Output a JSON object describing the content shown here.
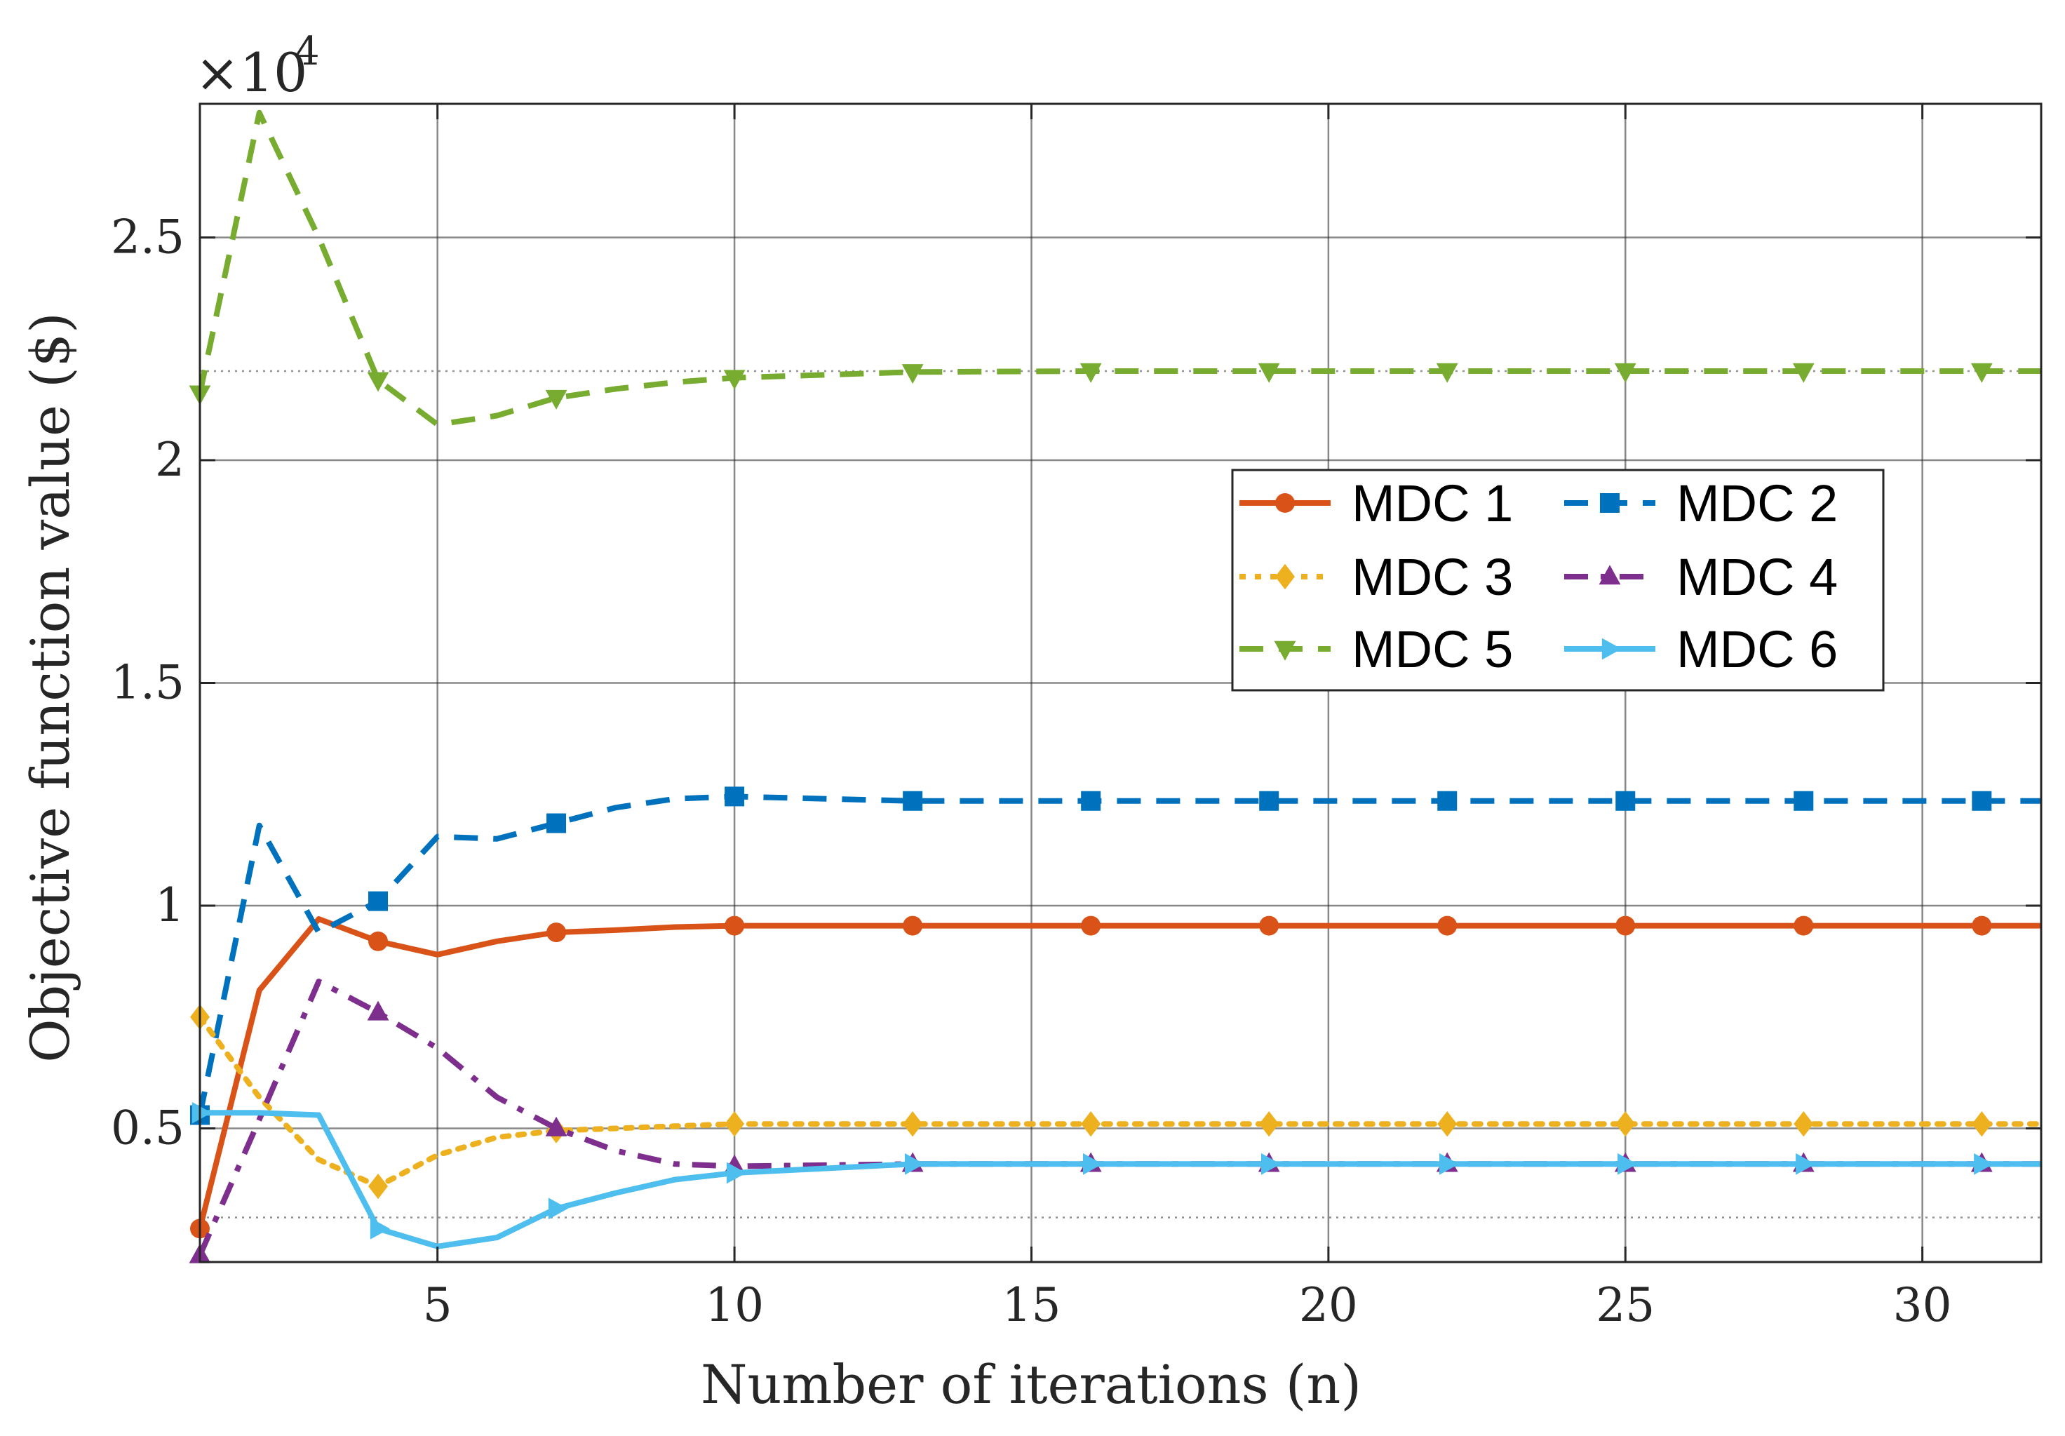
{
  "chart_data": {
    "type": "line",
    "title": "",
    "xlabel": "Number of iterations (n)",
    "ylabel": "Objective function value ($)",
    "exponent_label": "×10",
    "exponent_power": "4",
    "xlim": [
      1,
      32
    ],
    "ylim": [
      2000,
      28000
    ],
    "y_scale": 10000,
    "grid": true,
    "legend_position": "center-right",
    "x_ticks": [
      5,
      10,
      15,
      20,
      25,
      30
    ],
    "x_tick_labels": [
      "5",
      "10",
      "15",
      "20",
      "25",
      "30"
    ],
    "y_ticks": [
      5000,
      10000,
      15000,
      20000,
      25000
    ],
    "y_tick_labels": [
      "0.5",
      "1",
      "1.5",
      "2",
      "2.5"
    ],
    "y_minor_dotted": [
      3000,
      22000,
      28000
    ],
    "series": [
      {
        "name": "MDC 1",
        "color": "#D95319",
        "dash": "solid",
        "marker": "circle",
        "x": [
          1,
          2,
          3,
          4,
          5,
          6,
          7,
          8,
          9,
          10,
          13,
          16,
          19,
          22,
          25,
          28,
          31,
          32
        ],
        "values": [
          2750,
          8100,
          9700,
          9200,
          8900,
          9200,
          9400,
          9450,
          9520,
          9550,
          9550,
          9550,
          9550,
          9550,
          9550,
          9550,
          9550,
          9550
        ],
        "marker_x": [
          1,
          4,
          7,
          10,
          13,
          16,
          19,
          22,
          25,
          28,
          31
        ]
      },
      {
        "name": "MDC 2",
        "color": "#0072BD",
        "dash": "dashed",
        "marker": "square",
        "x": [
          1,
          2,
          3,
          4,
          5,
          6,
          7,
          8,
          9,
          10,
          13,
          16,
          19,
          22,
          25,
          28,
          31,
          32
        ],
        "values": [
          5300,
          11800,
          9400,
          10100,
          11550,
          11500,
          11850,
          12200,
          12400,
          12450,
          12350,
          12350,
          12350,
          12350,
          12350,
          12350,
          12350,
          12350
        ],
        "marker_x": [
          1,
          4,
          7,
          10,
          13,
          16,
          19,
          22,
          25,
          28,
          31
        ]
      },
      {
        "name": "MDC 3",
        "color": "#EDB120",
        "dash": "dotted",
        "marker": "diamond",
        "x": [
          1,
          2,
          3,
          4,
          5,
          6,
          7,
          8,
          9,
          10,
          13,
          16,
          19,
          22,
          25,
          28,
          31,
          32
        ],
        "values": [
          7500,
          5700,
          4300,
          3700,
          4400,
          4800,
          4950,
          5000,
          5050,
          5100,
          5100,
          5100,
          5100,
          5100,
          5100,
          5100,
          5100,
          5100
        ],
        "marker_x": [
          1,
          4,
          7,
          10,
          13,
          16,
          19,
          22,
          25,
          28,
          31
        ]
      },
      {
        "name": "MDC 4",
        "color": "#7E2F8E",
        "dash": "dashdot",
        "marker": "triangle-up",
        "x": [
          1,
          2,
          3,
          4,
          5,
          6,
          7,
          8,
          9,
          10,
          13,
          16,
          19,
          22,
          25,
          28,
          31,
          32
        ],
        "values": [
          2150,
          5200,
          8300,
          7600,
          6800,
          5700,
          5000,
          4500,
          4200,
          4150,
          4200,
          4200,
          4200,
          4200,
          4200,
          4200,
          4200,
          4200
        ],
        "marker_x": [
          1,
          4,
          7,
          10,
          13,
          16,
          19,
          22,
          25,
          28,
          31
        ]
      },
      {
        "name": "MDC 5",
        "color": "#77AC30",
        "dash": "dashed",
        "marker": "triangle-down",
        "x": [
          1,
          2,
          3,
          4,
          5,
          6,
          7,
          8,
          9,
          10,
          13,
          16,
          19,
          22,
          25,
          28,
          31,
          32
        ],
        "values": [
          21500,
          27800,
          25000,
          21800,
          20800,
          21000,
          21400,
          21600,
          21750,
          21850,
          21980,
          22000,
          22000,
          22000,
          22000,
          22000,
          22000,
          22000
        ],
        "marker_x": [
          1,
          4,
          7,
          10,
          13,
          16,
          19,
          22,
          25,
          28,
          31
        ]
      },
      {
        "name": "MDC 6",
        "color": "#4DBEEE",
        "dash": "solid",
        "marker": "triangle-right",
        "x": [
          1,
          2,
          3,
          4,
          5,
          6,
          7,
          8,
          9,
          10,
          13,
          16,
          19,
          22,
          25,
          28,
          31,
          32
        ],
        "values": [
          5350,
          5350,
          5300,
          2750,
          2350,
          2550,
          3200,
          3550,
          3850,
          4000,
          4200,
          4200,
          4200,
          4200,
          4200,
          4200,
          4200,
          4200
        ],
        "marker_x": [
          1,
          4,
          7,
          10,
          13,
          16,
          19,
          22,
          25,
          28,
          31
        ]
      }
    ]
  }
}
